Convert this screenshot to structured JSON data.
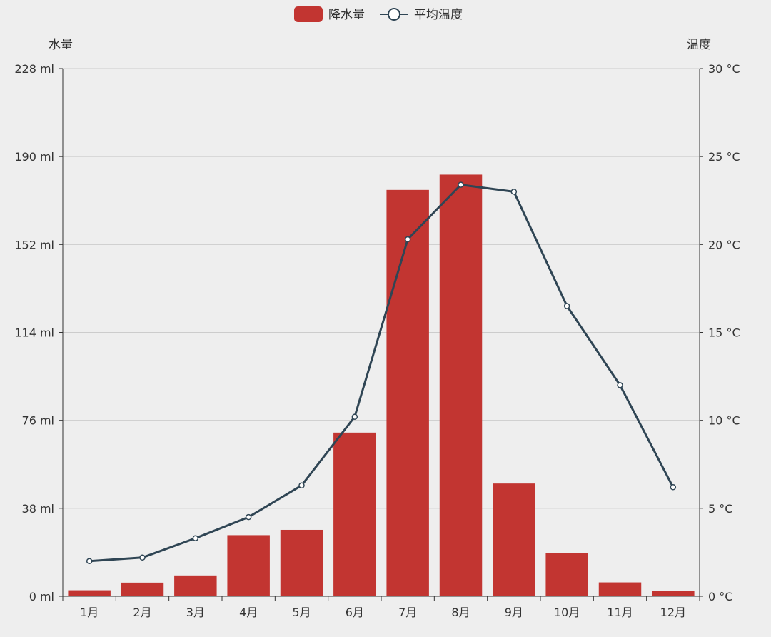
{
  "chart_data": {
    "type": "bar",
    "legend": {
      "position": "top-center",
      "items": [
        "降水量",
        "平均温度"
      ]
    },
    "categories": [
      "1月",
      "2月",
      "3月",
      "4月",
      "5月",
      "6月",
      "7月",
      "8月",
      "9月",
      "10月",
      "11月",
      "12月"
    ],
    "series": [
      {
        "name": "降水量",
        "type": "bar",
        "axis": "left",
        "color": "#c23531",
        "values": [
          2.6,
          5.9,
          9.0,
          26.4,
          28.7,
          70.7,
          175.6,
          182.2,
          48.7,
          18.8,
          6.0,
          2.3
        ]
      },
      {
        "name": "平均温度",
        "type": "line",
        "axis": "right",
        "color": "#2f4554",
        "values": [
          2.0,
          2.2,
          3.3,
          4.5,
          6.3,
          10.2,
          20.3,
          23.4,
          23.0,
          16.5,
          12.0,
          6.2
        ]
      }
    ],
    "y_left": {
      "name": "水量",
      "min": 0,
      "max": 228,
      "interval": 38,
      "ticks": [
        "0 ml",
        "38 ml",
        "76 ml",
        "114 ml",
        "152 ml",
        "190 ml",
        "228 ml"
      ]
    },
    "y_right": {
      "name": "温度",
      "min": 0,
      "max": 30,
      "interval": 5,
      "ticks": [
        "0 °C",
        "5 °C",
        "10 °C",
        "15 °C",
        "20 °C",
        "25 °C",
        "30 °C"
      ]
    },
    "grid": true
  }
}
